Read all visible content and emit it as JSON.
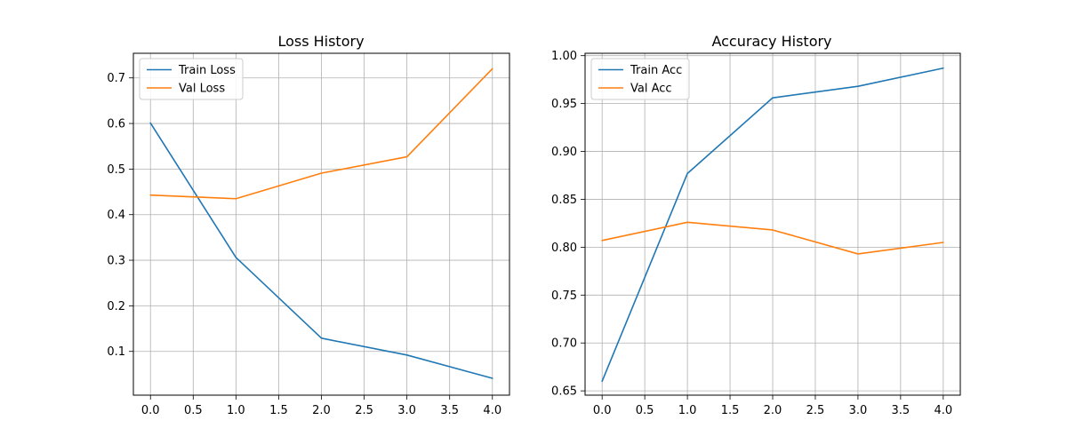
{
  "chart_data": [
    {
      "type": "line",
      "title": "Loss History",
      "xlabel": "",
      "ylabel": "",
      "x": [
        0,
        1,
        2,
        3,
        4
      ],
      "xlim": [
        -0.2,
        4.2
      ],
      "ylim": [
        0.004,
        0.754
      ],
      "xticks": [
        0.0,
        0.5,
        1.0,
        1.5,
        2.0,
        2.5,
        3.0,
        3.5,
        4.0
      ],
      "xtick_labels": [
        "0.0",
        "0.5",
        "1.0",
        "1.5",
        "2.0",
        "2.5",
        "3.0",
        "3.5",
        "4.0"
      ],
      "yticks": [
        0.1,
        0.2,
        0.3,
        0.4,
        0.5,
        0.6,
        0.7
      ],
      "ytick_labels": [
        "0.1",
        "0.2",
        "0.3",
        "0.4",
        "0.5",
        "0.6",
        "0.7"
      ],
      "grid": true,
      "legend_position": "top-left",
      "series": [
        {
          "name": "Train Loss",
          "color": "#1f77b4",
          "values": [
            0.601,
            0.306,
            0.129,
            0.092,
            0.041
          ]
        },
        {
          "name": "Val Loss",
          "color": "#ff7f0e",
          "values": [
            0.443,
            0.435,
            0.491,
            0.527,
            0.72
          ]
        }
      ]
    },
    {
      "type": "line",
      "title": "Accuracy History",
      "xlabel": "",
      "ylabel": "",
      "x": [
        0,
        1,
        2,
        3,
        4
      ],
      "xlim": [
        -0.2,
        4.2
      ],
      "ylim": [
        0.6455,
        1.0025
      ],
      "xticks": [
        0.0,
        0.5,
        1.0,
        1.5,
        2.0,
        2.5,
        3.0,
        3.5,
        4.0
      ],
      "xtick_labels": [
        "0.0",
        "0.5",
        "1.0",
        "1.5",
        "2.0",
        "2.5",
        "3.0",
        "3.5",
        "4.0"
      ],
      "yticks": [
        0.65,
        0.7,
        0.75,
        0.8,
        0.85,
        0.9,
        0.95,
        1.0
      ],
      "ytick_labels": [
        "0.65",
        "0.70",
        "0.75",
        "0.80",
        "0.85",
        "0.90",
        "0.95",
        "1.00"
      ],
      "grid": true,
      "legend_position": "top-left",
      "series": [
        {
          "name": "Train Acc",
          "color": "#1f77b4",
          "values": [
            0.66,
            0.877,
            0.956,
            0.968,
            0.987
          ]
        },
        {
          "name": "Val Acc",
          "color": "#ff7f0e",
          "values": [
            0.807,
            0.826,
            0.818,
            0.793,
            0.805
          ]
        }
      ]
    }
  ]
}
